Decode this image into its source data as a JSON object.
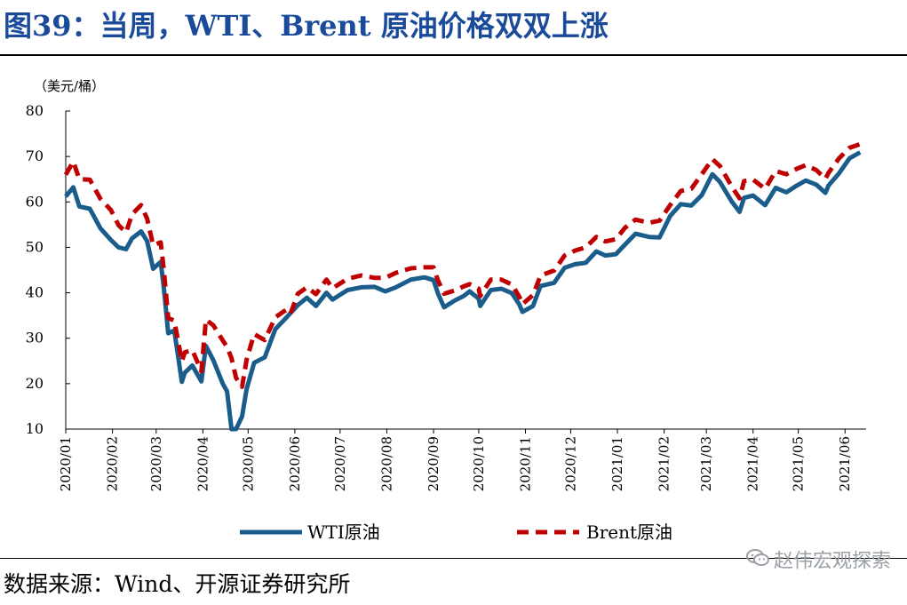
{
  "title": "图39：当周，WTI、Brent 原油价格双双上涨",
  "source": "数据来源：Wind、开源证券研究所",
  "watermark": "赵伟宏观探索",
  "colors": {
    "wti": "#1b5d8a",
    "brent": "#c00000",
    "title": "#1a4a9a"
  },
  "chart_data": {
    "type": "line",
    "ylabel": "（美元/桶）",
    "ylim": [
      10,
      80
    ],
    "yticks": [
      10,
      20,
      30,
      40,
      50,
      60,
      70,
      80
    ],
    "xlim": [
      "2020-01-01",
      "2021-06-15"
    ],
    "xticks": [
      "2020/01",
      "2020/02",
      "2020/03",
      "2020/04",
      "2020/05",
      "2020/06",
      "2020/07",
      "2020/08",
      "2020/09",
      "2020/10",
      "2020/11",
      "2020/12",
      "2021/01",
      "2021/02",
      "2021/03",
      "2021/04",
      "2021/05",
      "2021/06"
    ],
    "legend_position": "bottom",
    "grid": false,
    "series": [
      {
        "name": "WTI原油",
        "style": "solid",
        "points": [
          [
            "2020-01-01",
            61.2
          ],
          [
            "2020-01-06",
            63.2
          ],
          [
            "2020-01-10",
            59.0
          ],
          [
            "2020-01-17",
            58.5
          ],
          [
            "2020-01-24",
            54.2
          ],
          [
            "2020-01-31",
            51.6
          ],
          [
            "2020-02-05",
            50.0
          ],
          [
            "2020-02-10",
            49.6
          ],
          [
            "2020-02-14",
            52.0
          ],
          [
            "2020-02-20",
            53.5
          ],
          [
            "2020-02-24",
            51.4
          ],
          [
            "2020-02-28",
            45.3
          ],
          [
            "2020-03-04",
            46.8
          ],
          [
            "2020-03-06",
            41.3
          ],
          [
            "2020-03-09",
            31.1
          ],
          [
            "2020-03-13",
            31.7
          ],
          [
            "2020-03-18",
            20.4
          ],
          [
            "2020-03-20",
            22.4
          ],
          [
            "2020-03-25",
            24.0
          ],
          [
            "2020-03-31",
            20.5
          ],
          [
            "2020-04-03",
            28.3
          ],
          [
            "2020-04-08",
            25.1
          ],
          [
            "2020-04-14",
            20.1
          ],
          [
            "2020-04-17",
            18.3
          ],
          [
            "2020-04-20",
            10.0
          ],
          [
            "2020-04-23",
            10.0
          ],
          [
            "2020-04-27",
            12.8
          ],
          [
            "2020-04-30",
            18.8
          ],
          [
            "2020-05-05",
            24.6
          ],
          [
            "2020-05-12",
            25.8
          ],
          [
            "2020-05-19",
            32.0
          ],
          [
            "2020-05-26",
            34.4
          ],
          [
            "2020-05-29",
            35.5
          ],
          [
            "2020-06-03",
            37.3
          ],
          [
            "2020-06-09",
            38.9
          ],
          [
            "2020-06-15",
            37.1
          ],
          [
            "2020-06-22",
            40.0
          ],
          [
            "2020-06-26",
            38.5
          ],
          [
            "2020-07-06",
            40.6
          ],
          [
            "2020-07-15",
            41.2
          ],
          [
            "2020-07-24",
            41.3
          ],
          [
            "2020-07-31",
            40.3
          ],
          [
            "2020-08-07",
            41.2
          ],
          [
            "2020-08-17",
            42.9
          ],
          [
            "2020-08-26",
            43.4
          ],
          [
            "2020-09-01",
            42.8
          ],
          [
            "2020-09-04",
            39.8
          ],
          [
            "2020-09-08",
            36.8
          ],
          [
            "2020-09-15",
            38.3
          ],
          [
            "2020-09-21",
            39.3
          ],
          [
            "2020-09-25",
            40.3
          ],
          [
            "2020-10-01",
            38.7
          ],
          [
            "2020-10-02",
            37.1
          ],
          [
            "2020-10-09",
            40.6
          ],
          [
            "2020-10-16",
            40.9
          ],
          [
            "2020-10-23",
            39.9
          ],
          [
            "2020-10-28",
            37.4
          ],
          [
            "2020-10-30",
            35.8
          ],
          [
            "2020-11-06",
            37.1
          ],
          [
            "2020-11-11",
            41.5
          ],
          [
            "2020-11-20",
            42.2
          ],
          [
            "2020-11-27",
            45.5
          ],
          [
            "2020-12-04",
            46.3
          ],
          [
            "2020-12-11",
            46.6
          ],
          [
            "2020-12-18",
            49.1
          ],
          [
            "2020-12-24",
            48.2
          ],
          [
            "2020-12-31",
            48.5
          ],
          [
            "2021-01-06",
            50.6
          ],
          [
            "2021-01-13",
            53.0
          ],
          [
            "2021-01-22",
            52.3
          ],
          [
            "2021-01-29",
            52.2
          ],
          [
            "2021-02-05",
            56.9
          ],
          [
            "2021-02-12",
            59.5
          ],
          [
            "2021-02-19",
            59.2
          ],
          [
            "2021-02-26",
            61.5
          ],
          [
            "2021-03-05",
            66.1
          ],
          [
            "2021-03-10",
            64.4
          ],
          [
            "2021-03-18",
            60.0
          ],
          [
            "2021-03-23",
            57.8
          ],
          [
            "2021-03-26",
            60.9
          ],
          [
            "2021-04-01",
            61.4
          ],
          [
            "2021-04-09",
            59.3
          ],
          [
            "2021-04-16",
            63.1
          ],
          [
            "2021-04-23",
            62.1
          ],
          [
            "2021-04-30",
            63.6
          ],
          [
            "2021-05-06",
            64.7
          ],
          [
            "2021-05-13",
            63.8
          ],
          [
            "2021-05-19",
            62.0
          ],
          [
            "2021-05-21",
            63.6
          ],
          [
            "2021-05-28",
            66.3
          ],
          [
            "2021-06-04",
            69.6
          ],
          [
            "2021-06-11",
            70.9
          ]
        ]
      },
      {
        "name": "Brent原油",
        "style": "dashed",
        "points": [
          [
            "2020-01-01",
            66.0
          ],
          [
            "2020-01-06",
            68.9
          ],
          [
            "2020-01-10",
            65.0
          ],
          [
            "2020-01-17",
            64.9
          ],
          [
            "2020-01-24",
            60.7
          ],
          [
            "2020-01-31",
            58.2
          ],
          [
            "2020-02-05",
            54.9
          ],
          [
            "2020-02-10",
            53.3
          ],
          [
            "2020-02-14",
            57.3
          ],
          [
            "2020-02-20",
            59.3
          ],
          [
            "2020-02-24",
            56.3
          ],
          [
            "2020-02-28",
            50.5
          ],
          [
            "2020-03-04",
            51.1
          ],
          [
            "2020-03-06",
            45.3
          ],
          [
            "2020-03-09",
            34.4
          ],
          [
            "2020-03-13",
            33.9
          ],
          [
            "2020-03-18",
            24.9
          ],
          [
            "2020-03-20",
            26.9
          ],
          [
            "2020-03-25",
            27.4
          ],
          [
            "2020-03-31",
            22.7
          ],
          [
            "2020-04-03",
            34.1
          ],
          [
            "2020-04-08",
            32.8
          ],
          [
            "2020-04-14",
            29.6
          ],
          [
            "2020-04-17",
            28.1
          ],
          [
            "2020-04-20",
            25.6
          ],
          [
            "2020-04-23",
            21.3
          ],
          [
            "2020-04-27",
            19.3
          ],
          [
            "2020-04-30",
            25.3
          ],
          [
            "2020-05-05",
            30.9
          ],
          [
            "2020-05-12",
            29.6
          ],
          [
            "2020-05-19",
            34.6
          ],
          [
            "2020-05-26",
            36.2
          ],
          [
            "2020-05-29",
            35.3
          ],
          [
            "2020-06-03",
            39.8
          ],
          [
            "2020-06-09",
            41.2
          ],
          [
            "2020-06-15",
            39.7
          ],
          [
            "2020-06-22",
            42.9
          ],
          [
            "2020-06-26",
            41.0
          ],
          [
            "2020-07-06",
            43.1
          ],
          [
            "2020-07-15",
            43.8
          ],
          [
            "2020-07-24",
            43.3
          ],
          [
            "2020-07-31",
            43.3
          ],
          [
            "2020-08-07",
            44.4
          ],
          [
            "2020-08-17",
            45.4
          ],
          [
            "2020-08-26",
            45.6
          ],
          [
            "2020-09-01",
            45.6
          ],
          [
            "2020-09-04",
            42.7
          ],
          [
            "2020-09-08",
            39.8
          ],
          [
            "2020-09-15",
            40.5
          ],
          [
            "2020-09-21",
            41.4
          ],
          [
            "2020-09-25",
            41.9
          ],
          [
            "2020-10-01",
            40.9
          ],
          [
            "2020-10-02",
            39.3
          ],
          [
            "2020-10-09",
            42.9
          ],
          [
            "2020-10-16",
            42.9
          ],
          [
            "2020-10-23",
            41.8
          ],
          [
            "2020-10-28",
            39.1
          ],
          [
            "2020-10-30",
            37.5
          ],
          [
            "2020-11-06",
            39.5
          ],
          [
            "2020-11-11",
            43.8
          ],
          [
            "2020-11-20",
            44.9
          ],
          [
            "2020-11-27",
            48.2
          ],
          [
            "2020-12-04",
            49.3
          ],
          [
            "2020-12-11",
            50.0
          ],
          [
            "2020-12-18",
            52.3
          ],
          [
            "2020-12-24",
            51.3
          ],
          [
            "2020-12-31",
            51.8
          ],
          [
            "2021-01-06",
            54.3
          ],
          [
            "2021-01-13",
            56.1
          ],
          [
            "2021-01-22",
            55.4
          ],
          [
            "2021-01-29",
            55.9
          ],
          [
            "2021-02-05",
            59.3
          ],
          [
            "2021-02-12",
            62.4
          ],
          [
            "2021-02-19",
            62.9
          ],
          [
            "2021-02-26",
            66.1
          ],
          [
            "2021-03-05",
            69.4
          ],
          [
            "2021-03-10",
            67.9
          ],
          [
            "2021-03-18",
            63.3
          ],
          [
            "2021-03-23",
            60.8
          ],
          [
            "2021-03-26",
            64.6
          ],
          [
            "2021-04-01",
            64.9
          ],
          [
            "2021-04-09",
            62.9
          ],
          [
            "2021-04-16",
            66.8
          ],
          [
            "2021-04-23",
            66.1
          ],
          [
            "2021-04-30",
            67.3
          ],
          [
            "2021-05-06",
            68.1
          ],
          [
            "2021-05-13",
            67.0
          ],
          [
            "2021-05-19",
            65.1
          ],
          [
            "2021-05-21",
            66.4
          ],
          [
            "2021-05-28",
            69.6
          ],
          [
            "2021-06-04",
            71.9
          ],
          [
            "2021-06-11",
            72.7
          ]
        ]
      }
    ]
  }
}
